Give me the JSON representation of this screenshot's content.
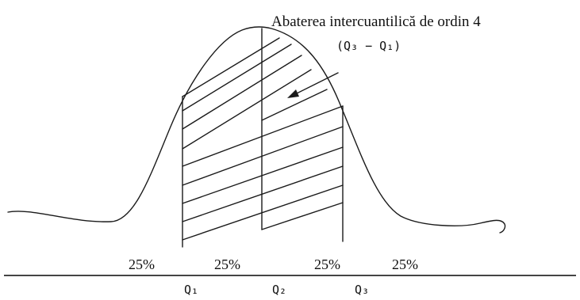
{
  "title": "Abaterea intercuantilică de ordin 4",
  "formula": "(Q₃ − Q₁)",
  "percent_labels": [
    "25%",
    "25%",
    "25%",
    "25%"
  ],
  "quartile_labels": [
    "Q₁",
    "Q₂",
    "Q₃"
  ]
}
